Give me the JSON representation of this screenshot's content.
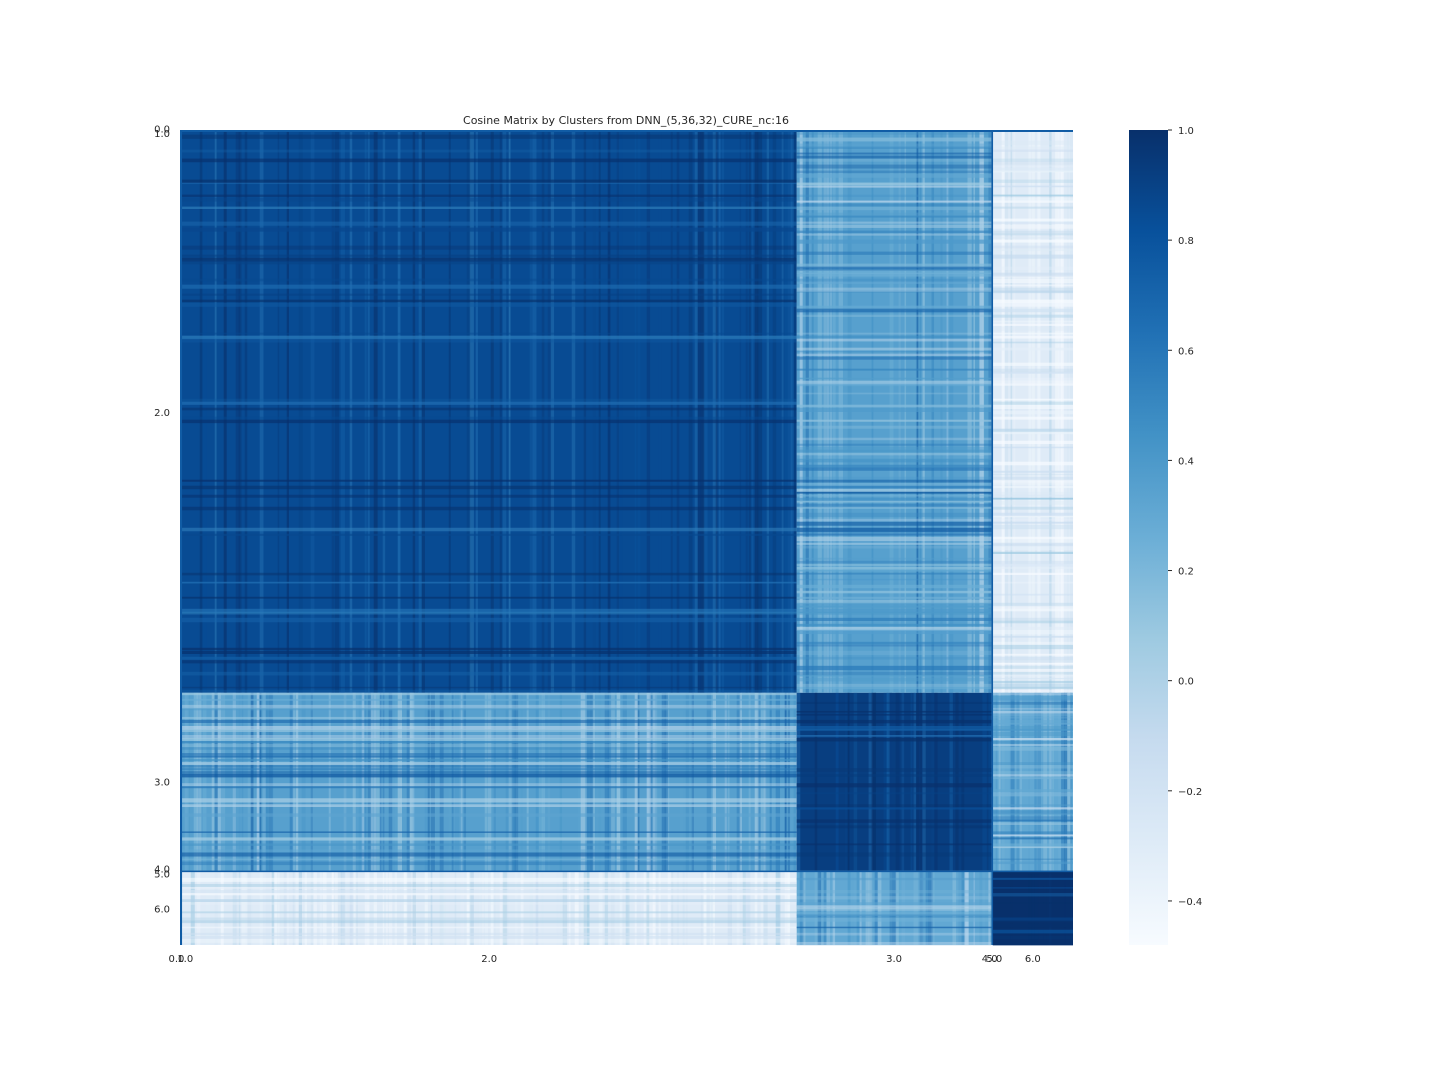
{
  "chart_data": {
    "type": "heatmap",
    "title": "Cosine Matrix by Clusters from DNN_(5,36,32)_CURE_nc:16",
    "xlabel": "",
    "ylabel": "",
    "colormap": "Blues",
    "color_low": "#f7fbff",
    "color_high": "#08306b",
    "grid": false,
    "colorbar": {
      "position": "right",
      "vmin": -0.48,
      "vmax": 1.0,
      "ticks": [
        1.0,
        0.8,
        0.6,
        0.4,
        0.2,
        0.0,
        -0.2,
        -0.4
      ],
      "tick_labels": [
        "1.0",
        "0.8",
        "0.6",
        "0.4",
        "0.2",
        "0.0",
        "−0.2",
        "−0.4"
      ]
    },
    "clusters": [
      {
        "label": "0.0",
        "start_index": 0,
        "size": 2
      },
      {
        "label": "1.0",
        "start_index": 2,
        "size": 2
      },
      {
        "label": "2.0",
        "start_index": 4,
        "size": 1440
      },
      {
        "label": "3.0",
        "start_index": 1444,
        "size": 456
      },
      {
        "label": "4.0",
        "start_index": 1900,
        "size": 1
      },
      {
        "label": "5.0",
        "start_index": 1901,
        "size": 2
      },
      {
        "label": "6.0",
        "start_index": 1903,
        "size": 188
      }
    ],
    "x_tick_labels": [
      "0.0",
      "1.0",
      "2.0",
      "3.0",
      "4.0",
      "5.0",
      "6.0"
    ],
    "y_tick_labels": [
      "0.0",
      "1.0",
      "2.0",
      "3.0",
      "4.0",
      "5.0",
      "6.0"
    ],
    "block_mean_similarity": {
      "rows": [
        "2.0",
        "3.0",
        "6.0"
      ],
      "cols": [
        "2.0",
        "3.0",
        "6.0"
      ],
      "values": [
        [
          0.85,
          0.35,
          -0.3
        ],
        [
          0.35,
          0.92,
          0.3
        ],
        [
          -0.3,
          0.3,
          1.0
        ]
      ]
    }
  }
}
